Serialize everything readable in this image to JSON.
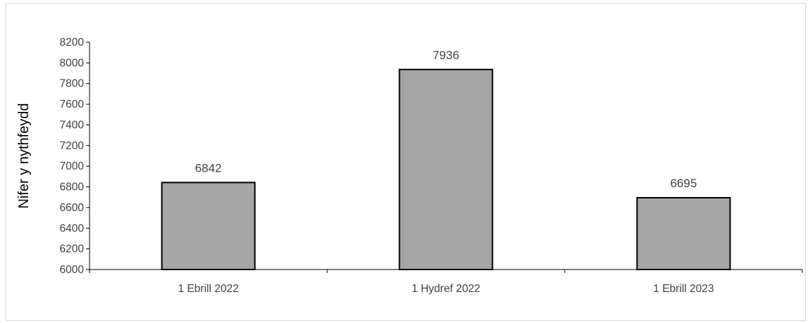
{
  "chart_data": {
    "type": "bar",
    "title": "",
    "xlabel": "",
    "ylabel": "Nifer y nythfeydd",
    "categories": [
      "1 Ebrill 2022",
      "1 Hydref 2022",
      "1 Ebrill 2023"
    ],
    "values": [
      6842,
      7936,
      6695
    ],
    "value_labels": [
      "6842",
      "7936",
      "6695"
    ],
    "ylim": [
      6000,
      8200
    ],
    "yticks": [
      "6000",
      "6200",
      "6400",
      "6600",
      "6800",
      "7000",
      "7200",
      "7400",
      "7600",
      "7800",
      "8000",
      "8200"
    ],
    "grid": false,
    "legend": "none",
    "colors": {
      "bar_fill": "#a6a6a6",
      "bar_stroke": "#000000",
      "axis": "#000000"
    }
  }
}
